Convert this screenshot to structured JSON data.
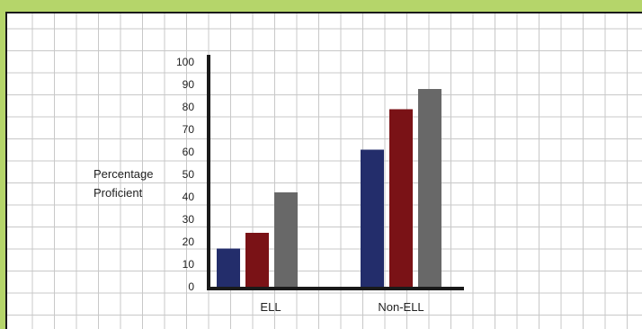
{
  "chart_data": {
    "type": "bar",
    "categories": [
      "ELL",
      "Non-ELL"
    ],
    "series": [
      {
        "values": [
          17,
          61
        ],
        "color": "#232d6b"
      },
      {
        "values": [
          24,
          79
        ],
        "color": "#7a1216"
      },
      {
        "values": [
          42,
          88
        ],
        "color": "#686868"
      }
    ],
    "title": "",
    "xlabel": "",
    "ylabel": "Percentage Proficient",
    "ylabel_lines": [
      "Percentage",
      "Proficient"
    ],
    "ylim": [
      0,
      100
    ],
    "yticks": [
      0,
      10,
      20,
      30,
      40,
      50,
      60,
      70,
      80,
      90,
      100
    ],
    "grid": true,
    "legend": "none"
  },
  "colors": {
    "background": "#b5d56a",
    "panel": "#ffffff",
    "grid": "#c8c8c8",
    "axis": "#1a1a1a"
  }
}
